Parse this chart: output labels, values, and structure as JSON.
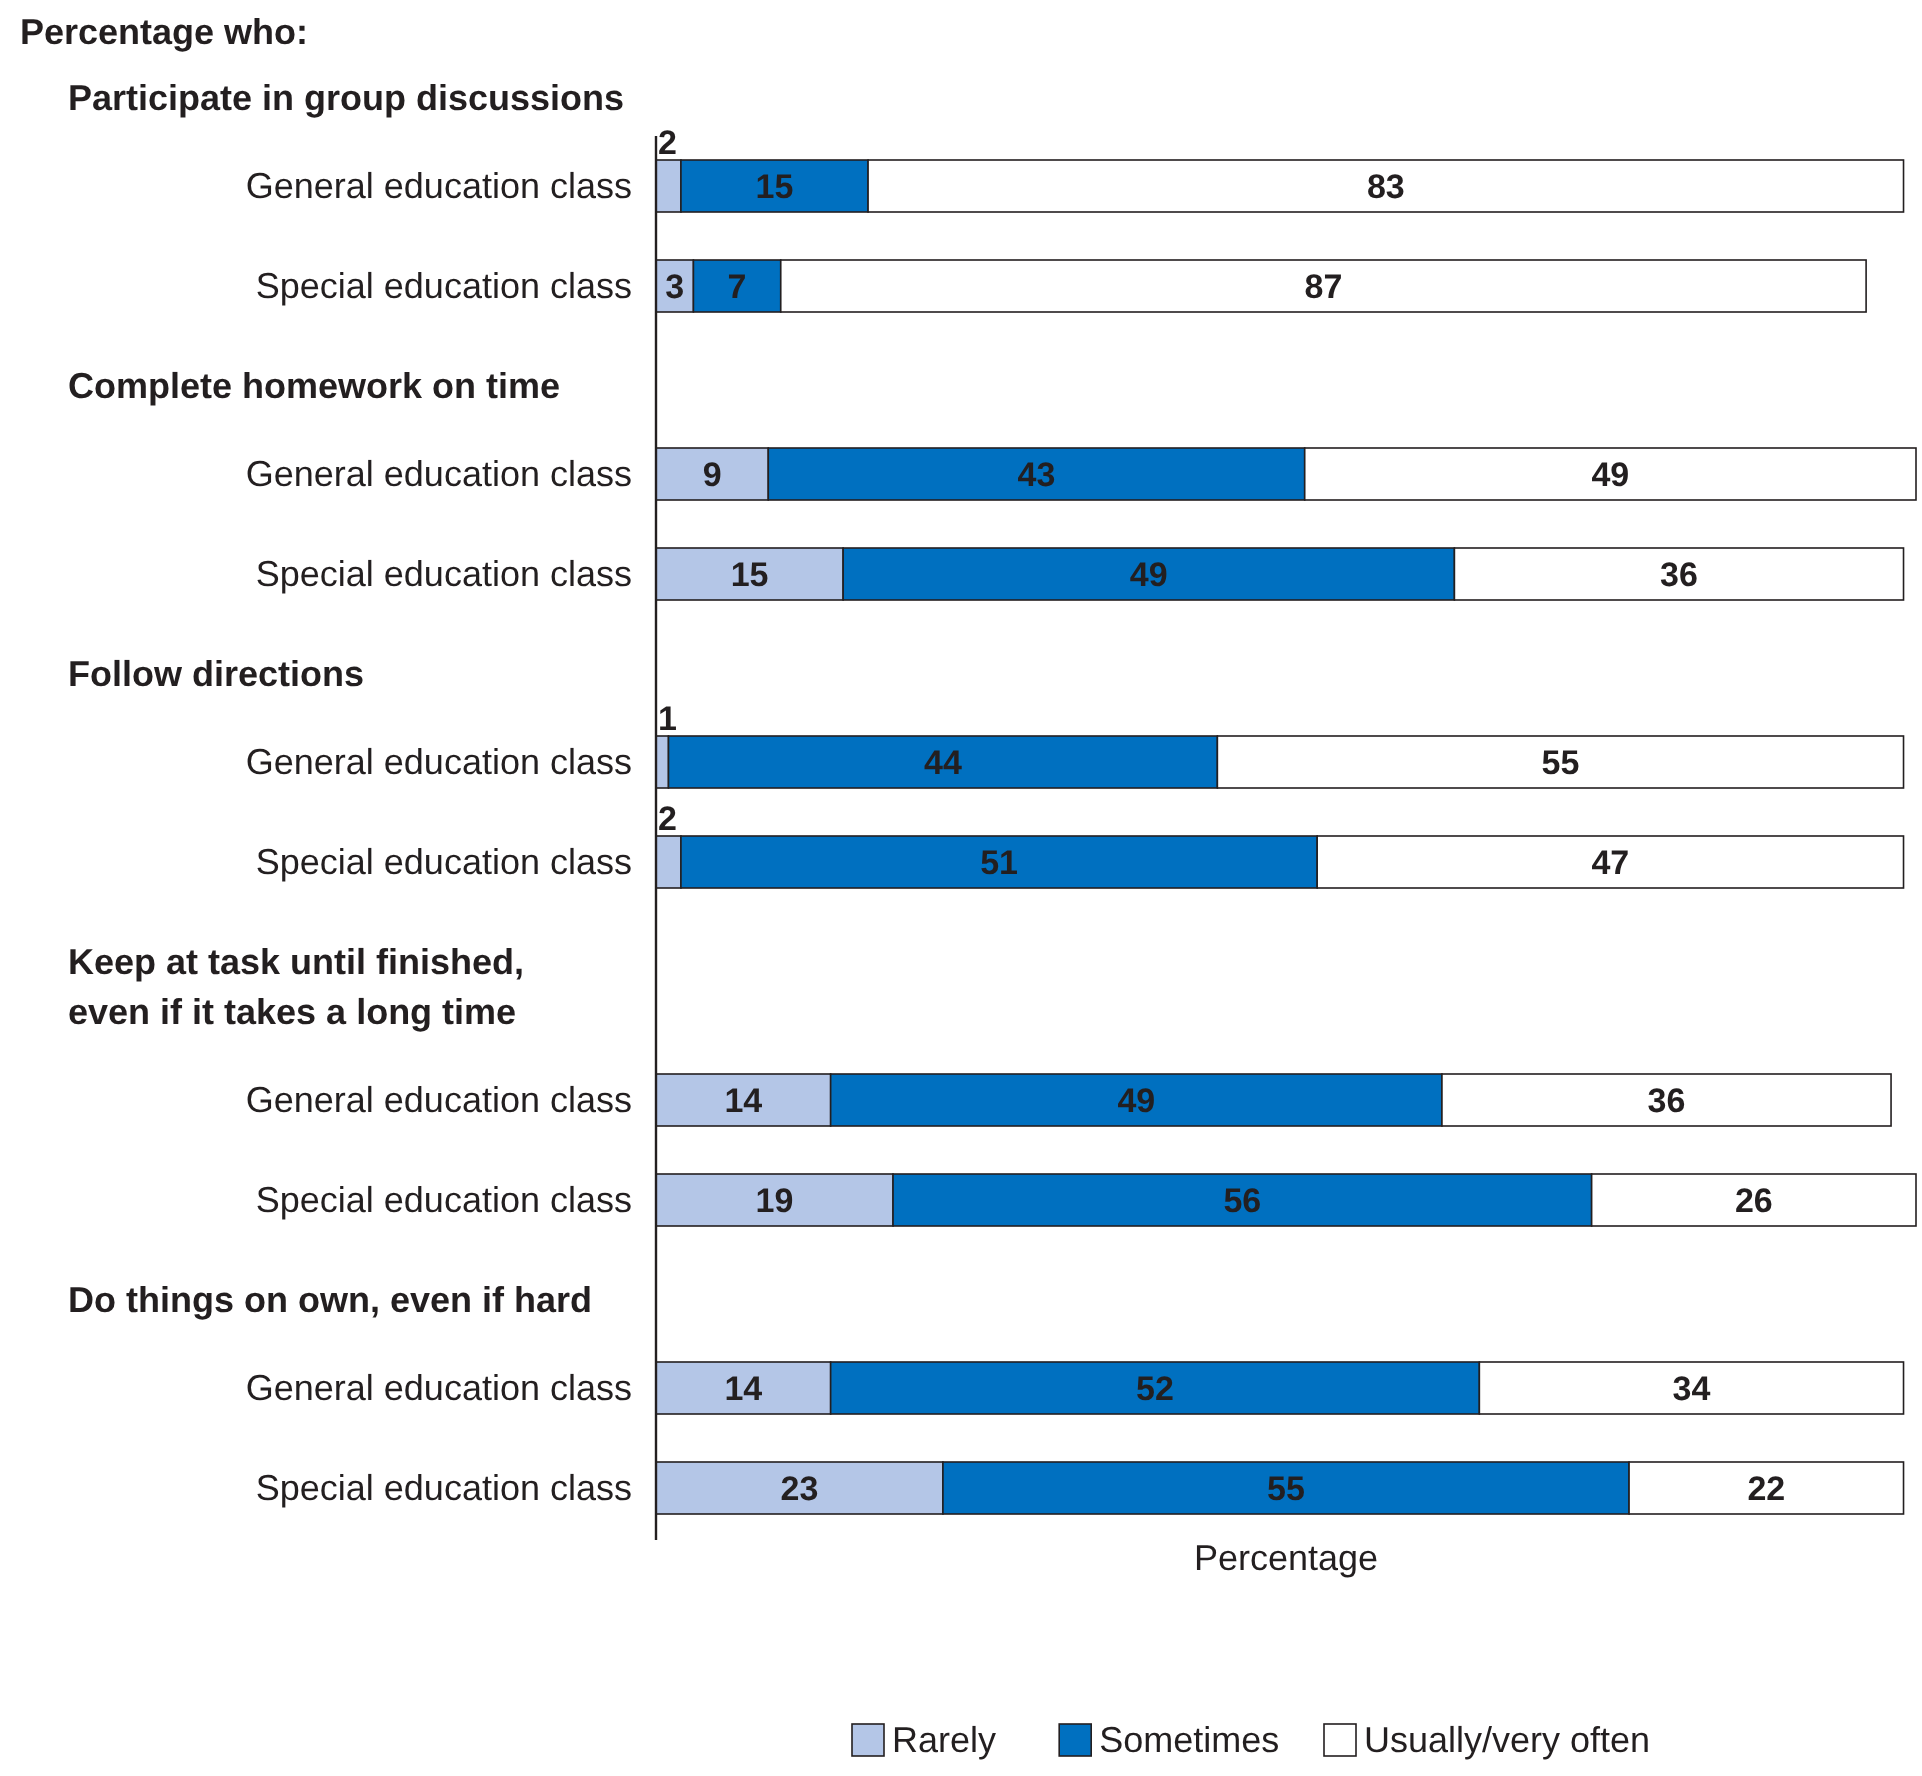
{
  "chart_data": {
    "type": "bar",
    "orientation": "horizontal",
    "stacked": true,
    "title": "Percentage who:",
    "xlabel": "Percentage",
    "tick_labels": "y",
    "data_labels": true,
    "legend": "bottom",
    "categories": [
      "General education class",
      "Special education class",
      "General education class",
      "Special education class",
      "General education class",
      "Special education class",
      "General education class",
      "Special education class",
      "General education class",
      "Special education class"
    ],
    "annotations": [
      "Participate in group discussions",
      "Complete homework on time",
      "Follow directions",
      "Keep at task until finished, even if it takes a long time",
      "Do things on own, even if hard"
    ],
    "series": [
      {
        "name": "Rarely",
        "color": "#b4c6e7",
        "values": [
          2,
          3,
          9,
          15,
          1,
          2,
          14,
          19,
          14,
          23
        ]
      },
      {
        "name": "Sometimes",
        "color": "#0070c0",
        "values": [
          15,
          7,
          43,
          49,
          44,
          51,
          49,
          56,
          52,
          55
        ]
      },
      {
        "name": "Usually/very often",
        "color": "#ffffff",
        "values": [
          83,
          87,
          49,
          36,
          55,
          47,
          36,
          26,
          34,
          22
        ]
      }
    ]
  }
}
